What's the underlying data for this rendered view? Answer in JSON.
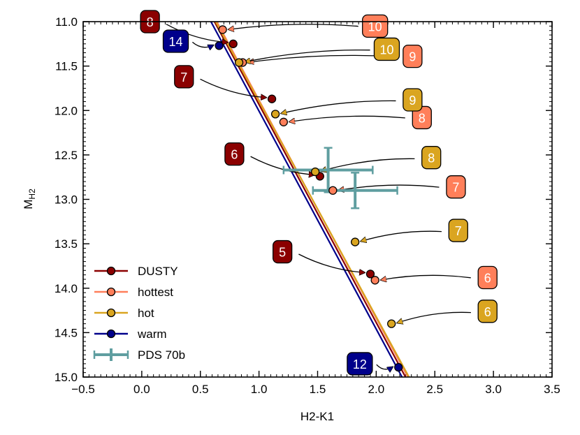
{
  "chart_data": {
    "type": "line",
    "title": "",
    "xlabel": "H2-K1",
    "ylabel_main": "M",
    "ylabel_sub": "H2",
    "xlim": [
      -0.5,
      3.5
    ],
    "ylim": [
      11.0,
      15.0
    ],
    "y_inverted": true,
    "grid": false,
    "legend_position": "bottom-left",
    "x_ticks": [
      {
        "value": -0.5,
        "label": "−0.5"
      },
      {
        "value": 0.0,
        "label": "0.0"
      },
      {
        "value": 0.5,
        "label": "0.5"
      },
      {
        "value": 1.0,
        "label": "1.0"
      },
      {
        "value": 1.5,
        "label": "1.5"
      },
      {
        "value": 2.0,
        "label": "2.0"
      },
      {
        "value": 2.5,
        "label": "2.5"
      },
      {
        "value": 3.0,
        "label": "3.0"
      },
      {
        "value": 3.5,
        "label": "3.5"
      }
    ],
    "y_ticks": [
      {
        "value": 11.0,
        "label": "11.0"
      },
      {
        "value": 11.5,
        "label": "11.5"
      },
      {
        "value": 12.0,
        "label": "12.0"
      },
      {
        "value": 12.5,
        "label": "12.5"
      },
      {
        "value": 13.0,
        "label": "13.0"
      },
      {
        "value": 13.5,
        "label": "13.5"
      },
      {
        "value": 14.0,
        "label": "14.0"
      },
      {
        "value": 14.5,
        "label": "14.5"
      },
      {
        "value": 15.0,
        "label": "15.0"
      }
    ],
    "series": [
      {
        "name": "DUSTY",
        "color": "#8b0000",
        "text_color": "#ffffff",
        "line": {
          "x": [
            0.62,
            2.25
          ],
          "y": [
            11.0,
            15.0
          ]
        },
        "points": [
          {
            "x": 0.78,
            "y": 11.25,
            "label": "8",
            "lx": 0.07,
            "ly": 11.0
          },
          {
            "x": 1.11,
            "y": 11.87,
            "label": "7",
            "lx": 0.36,
            "ly": 11.62
          },
          {
            "x": 1.52,
            "y": 12.74,
            "label": "6",
            "lx": 0.79,
            "ly": 12.49
          },
          {
            "x": 1.95,
            "y": 13.84,
            "label": "5",
            "lx": 1.2,
            "ly": 13.59
          }
        ]
      },
      {
        "name": "hottest",
        "color": "#ff7f5a",
        "text_color": "#ffffff",
        "line": {
          "x": [
            0.64,
            2.27
          ],
          "y": [
            11.0,
            15.0
          ]
        },
        "points": [
          {
            "x": 0.69,
            "y": 11.09,
            "label": "10",
            "lx": 1.99,
            "ly": 11.05
          },
          {
            "x": 0.86,
            "y": 11.46,
            "label": "9",
            "lx": 2.31,
            "ly": 11.39
          },
          {
            "x": 1.21,
            "y": 12.13,
            "label": "8",
            "lx": 2.39,
            "ly": 12.08
          },
          {
            "x": 1.63,
            "y": 12.9,
            "label": "7",
            "lx": 2.68,
            "ly": 12.86
          },
          {
            "x": 1.99,
            "y": 13.91,
            "label": "6",
            "lx": 2.95,
            "ly": 13.88
          }
        ]
      },
      {
        "name": "hot",
        "color": "#daa520",
        "text_color": "#ffffff",
        "line": {
          "x": [
            0.63,
            2.28
          ],
          "y": [
            11.0,
            15.0
          ]
        },
        "points": [
          {
            "x": 0.83,
            "y": 11.46,
            "label": "10",
            "lx": 2.09,
            "ly": 11.31
          },
          {
            "x": 1.14,
            "y": 12.04,
            "label": "9",
            "lx": 2.31,
            "ly": 11.88
          },
          {
            "x": 1.48,
            "y": 12.69,
            "label": "8",
            "lx": 2.47,
            "ly": 12.53
          },
          {
            "x": 1.82,
            "y": 13.48,
            "label": "7",
            "lx": 2.7,
            "ly": 13.35
          },
          {
            "x": 2.13,
            "y": 14.4,
            "label": "6",
            "lx": 2.95,
            "ly": 14.26
          }
        ]
      },
      {
        "name": "warm",
        "color": "#00008b",
        "text_color": "#ffffff",
        "line": {
          "x": [
            0.59,
            2.22
          ],
          "y": [
            11.0,
            15.0
          ]
        },
        "points": [
          {
            "x": 0.66,
            "y": 11.27,
            "label": "14",
            "lx": 0.29,
            "ly": 11.22
          },
          {
            "x": 2.19,
            "y": 14.89,
            "label": "12",
            "lx": 1.86,
            "ly": 14.85
          }
        ]
      }
    ],
    "errorbar_series": {
      "name": "PDS 70b",
      "color": "#5f9ea0",
      "points": [
        {
          "x": 1.59,
          "y": 12.67,
          "xerr": 0.38,
          "yerr": 0.25
        },
        {
          "x": 1.82,
          "y": 12.9,
          "xerr": 0.36,
          "yerr": 0.2
        }
      ]
    }
  }
}
